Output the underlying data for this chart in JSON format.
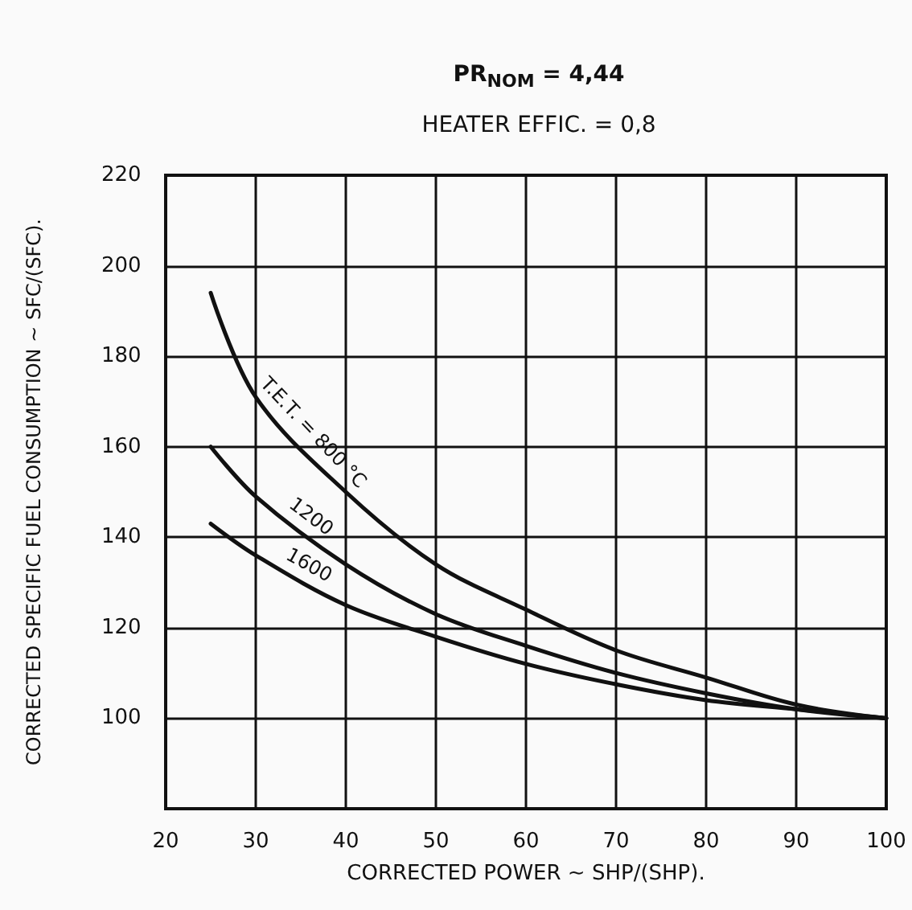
{
  "chart_data": {
    "type": "line",
    "title": "PR$_{NOM}$ = 4,44",
    "subtitle": "HEATER EFFIC. = 0,8",
    "xlabel": "CORRECTED POWER ~ SHP/(SHP).",
    "ylabel": "CORRECTED SPECIFIC FUEL CONSUMPTION ~ SFC/(SFC).",
    "x": [
      25,
      30,
      40,
      50,
      60,
      70,
      80,
      90,
      100
    ],
    "series": [
      {
        "color": "#111111",
        "values": [
          194,
          171,
          150,
          134,
          124,
          115,
          109,
          103,
          100
        ]
      },
      {
        "color": "#111111",
        "values": [
          160,
          149,
          134,
          123,
          116,
          110,
          105.5,
          102,
          100
        ]
      },
      {
        "color": "#111111",
        "values": [
          143,
          136,
          125,
          118,
          112,
          107.5,
          104,
          102,
          100
        ]
      }
    ],
    "annotations": [
      "T.E.T. = 800 °C",
      "1200",
      "1600"
    ],
    "xlim": [
      20,
      100
    ],
    "xticks": [
      20,
      30,
      40,
      50,
      60,
      70,
      80,
      90,
      100
    ],
    "ylim": [
      80,
      220
    ],
    "yticks": [
      100,
      120,
      140,
      160,
      180,
      200,
      220
    ],
    "grid": true,
    "marker": "none",
    "line_style": "solid"
  }
}
